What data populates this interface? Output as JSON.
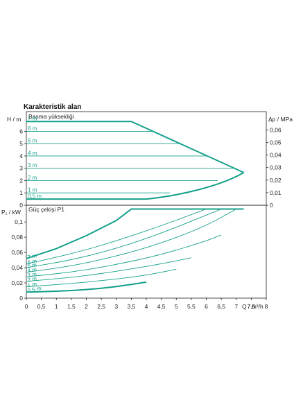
{
  "chart_data": [
    {
      "type": "line",
      "title": "Karakteristik alan",
      "subtitle": "Basma yüksekliği",
      "ylabel": "H / m",
      "ylabel_right": "Δp / MPa",
      "ylim": [
        0,
        7.6
      ],
      "yticks": [
        "0",
        "1",
        "2",
        "3",
        "4",
        "5",
        "6"
      ],
      "yticks_right": [
        "0",
        "0,01",
        "0,02",
        "0,03",
        "0,04",
        "0,05",
        "0,06"
      ],
      "series": [
        {
          "name": "7 m",
          "x": [
            0,
            3.5,
            7.25
          ],
          "y": [
            6.8,
            6.8,
            2.65
          ]
        },
        {
          "name": "6 m",
          "x": [
            0,
            7.25
          ],
          "y": [
            6.0,
            6.0
          ]
        },
        {
          "name": "5 m",
          "x": [
            0,
            7.25
          ],
          "y": [
            5.0,
            5.0
          ]
        },
        {
          "name": "4 m",
          "x": [
            0,
            7.25
          ],
          "y": [
            4.0,
            4.0
          ]
        },
        {
          "name": "3 m",
          "x": [
            0,
            7.25
          ],
          "y": [
            3.0,
            3.0
          ]
        },
        {
          "name": "2 m",
          "x": [
            0,
            7.25
          ],
          "y": [
            2.0,
            2.0
          ]
        },
        {
          "name": "1 m",
          "x": [
            0,
            7.25
          ],
          "y": [
            1.0,
            1.0
          ]
        },
        {
          "name": "0,5 m",
          "x": [
            0,
            4.0,
            5.5,
            6.5,
            7.25
          ],
          "y": [
            0.5,
            0.5,
            1.1,
            1.8,
            2.65
          ]
        }
      ]
    },
    {
      "type": "line",
      "subtitle": "Güç çekişi P1",
      "ylabel": "P₁ / kW",
      "xlabel": "Q / m³/h",
      "xlim": [
        0,
        8
      ],
      "ylim": [
        0,
        0.122
      ],
      "xticks": [
        "0",
        "0,5",
        "1",
        "1,5",
        "2",
        "2,5",
        "3",
        "3,5",
        "4",
        "4,5",
        "5",
        "5,5",
        "6",
        "6,5",
        "7",
        "7,5",
        "8"
      ],
      "yticks": [
        "0",
        "0,02",
        "0,04",
        "0,06",
        "0,08",
        "0,1"
      ],
      "series": [
        {
          "name": "7 m",
          "x": [
            0,
            1,
            2,
            3,
            3.5,
            7.25
          ],
          "y": [
            0.052,
            0.065,
            0.082,
            0.102,
            0.117,
            0.117
          ]
        },
        {
          "name": "6 m",
          "x": [
            0,
            1.5,
            3,
            4.5,
            6.0
          ],
          "y": [
            0.045,
            0.058,
            0.075,
            0.095,
            0.117
          ]
        },
        {
          "name": "5 m",
          "x": [
            0,
            1.5,
            3,
            4.5,
            6.5
          ],
          "y": [
            0.04,
            0.05,
            0.065,
            0.085,
            0.117
          ]
        },
        {
          "name": "4 m",
          "x": [
            0,
            1.5,
            3,
            4.5,
            6.0,
            7.0
          ],
          "y": [
            0.034,
            0.042,
            0.055,
            0.072,
            0.095,
            0.117
          ]
        },
        {
          "name": "3 m",
          "x": [
            0,
            1.5,
            3,
            4.5,
            6.0,
            6.5
          ],
          "y": [
            0.028,
            0.034,
            0.044,
            0.057,
            0.075,
            0.083
          ]
        },
        {
          "name": "2 m",
          "x": [
            0,
            1.5,
            3,
            4.5,
            5.5
          ],
          "y": [
            0.022,
            0.027,
            0.035,
            0.045,
            0.053
          ]
        },
        {
          "name": "1 m",
          "x": [
            0,
            1.5,
            3,
            4.0,
            5.0
          ],
          "y": [
            0.015,
            0.019,
            0.025,
            0.03,
            0.038
          ]
        },
        {
          "name": "0,5 m",
          "x": [
            0,
            1.0,
            2.0,
            3.0,
            4.0
          ],
          "y": [
            0.008,
            0.009,
            0.011,
            0.015,
            0.021
          ]
        }
      ]
    }
  ]
}
